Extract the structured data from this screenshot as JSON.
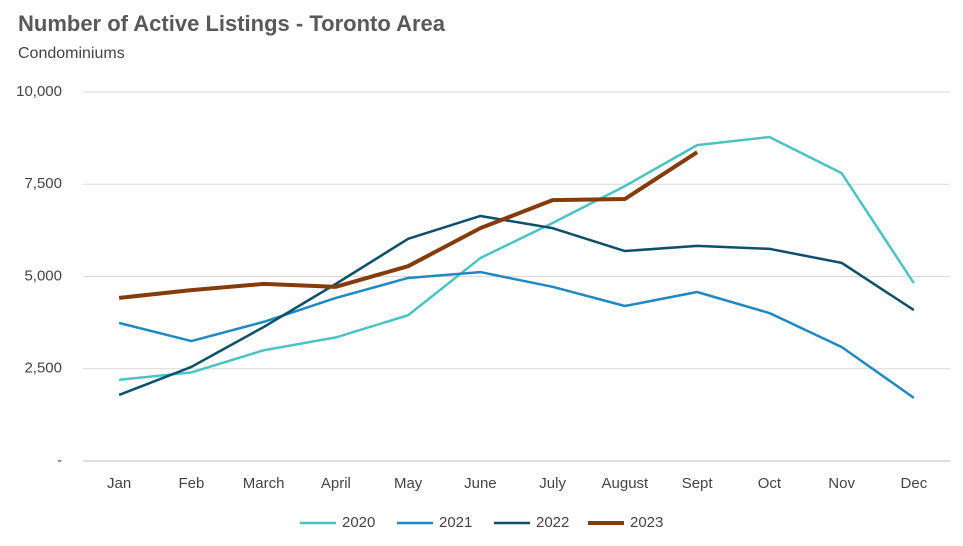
{
  "chart_data": {
    "type": "line",
    "title": "Number of Active Listings - Toronto Area",
    "subtitle": "Condominiums",
    "categories": [
      "Jan",
      "Feb",
      "March",
      "April",
      "May",
      "June",
      "July",
      "August",
      "Sept",
      "Oct",
      "Nov",
      "Dec"
    ],
    "series": [
      {
        "name": "2020",
        "color": "#4bc3c3",
        "values": [
          2200,
          2400,
          3000,
          3350,
          3950,
          5500,
          6450,
          7450,
          8560,
          8780,
          7800,
          4820
        ]
      },
      {
        "name": "2021",
        "color": "#2089c0",
        "values": [
          3740,
          3250,
          3770,
          4420,
          4960,
          5120,
          4720,
          4200,
          4580,
          4010,
          3090,
          1710
        ]
      },
      {
        "name": "2022",
        "color": "#0e4f6b",
        "values": [
          1790,
          2550,
          3630,
          4800,
          6020,
          6640,
          6310,
          5690,
          5830,
          5750,
          5370,
          4090
        ]
      },
      {
        "name": "2023",
        "color": "#843c0c",
        "values": [
          4420,
          4630,
          4800,
          4720,
          5280,
          6310,
          7070,
          7100,
          8370,
          null,
          null,
          null
        ]
      }
    ],
    "ylim": [
      0,
      10000
    ],
    "yticks": [
      {
        "value": 0,
        "label": "-"
      },
      {
        "value": 2500,
        "label": "2,500"
      },
      {
        "value": 5000,
        "label": "5,000"
      },
      {
        "value": 7500,
        "label": "7,500"
      },
      {
        "value": 10000,
        "label": "10,000"
      }
    ],
    "grid": true,
    "legend": "bottom"
  }
}
